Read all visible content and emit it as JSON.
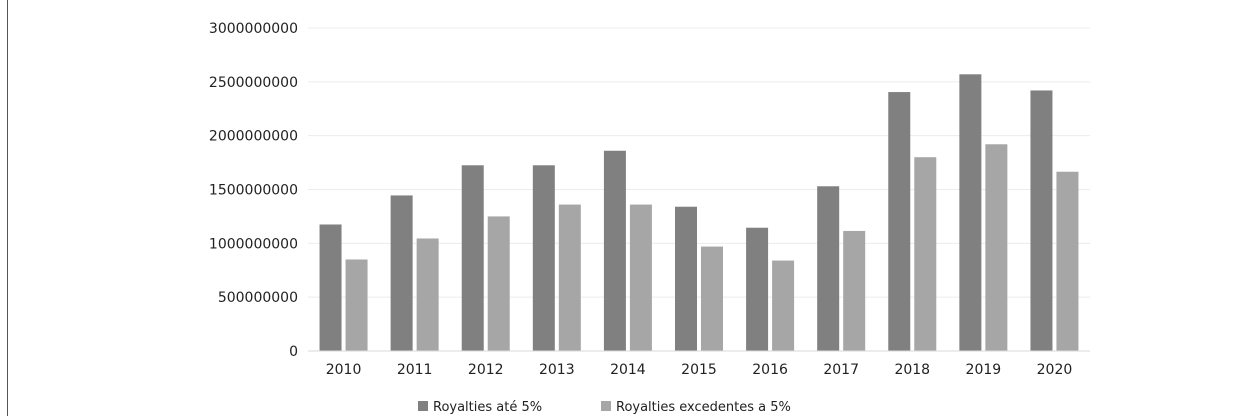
{
  "chart_data": {
    "type": "bar",
    "categories": [
      "2010",
      "2011",
      "2012",
      "2013",
      "2014",
      "2015",
      "2016",
      "2017",
      "2018",
      "2019",
      "2020"
    ],
    "series": [
      {
        "name": "Royalties até 5%",
        "color": "#808080",
        "values": [
          1175000000,
          1445000000,
          1725000000,
          1725000000,
          1860000000,
          1340000000,
          1145000000,
          1530000000,
          2405000000,
          2570000000,
          2420000000
        ]
      },
      {
        "name": "Royalties excedentes a 5%",
        "color": "#a6a6a6",
        "values": [
          850000000,
          1045000000,
          1250000000,
          1360000000,
          1360000000,
          970000000,
          840000000,
          1115000000,
          1800000000,
          1920000000,
          1665000000
        ]
      }
    ],
    "yticks": [
      "0",
      "500000000",
      "1000000000",
      "1500000000",
      "2000000000",
      "2500000000",
      "3000000000"
    ],
    "ylim": [
      0,
      3000000000
    ],
    "grid": true,
    "legend_position": "bottom",
    "gridline_color": "#ececec",
    "axis_color": "#d9d9d9"
  }
}
